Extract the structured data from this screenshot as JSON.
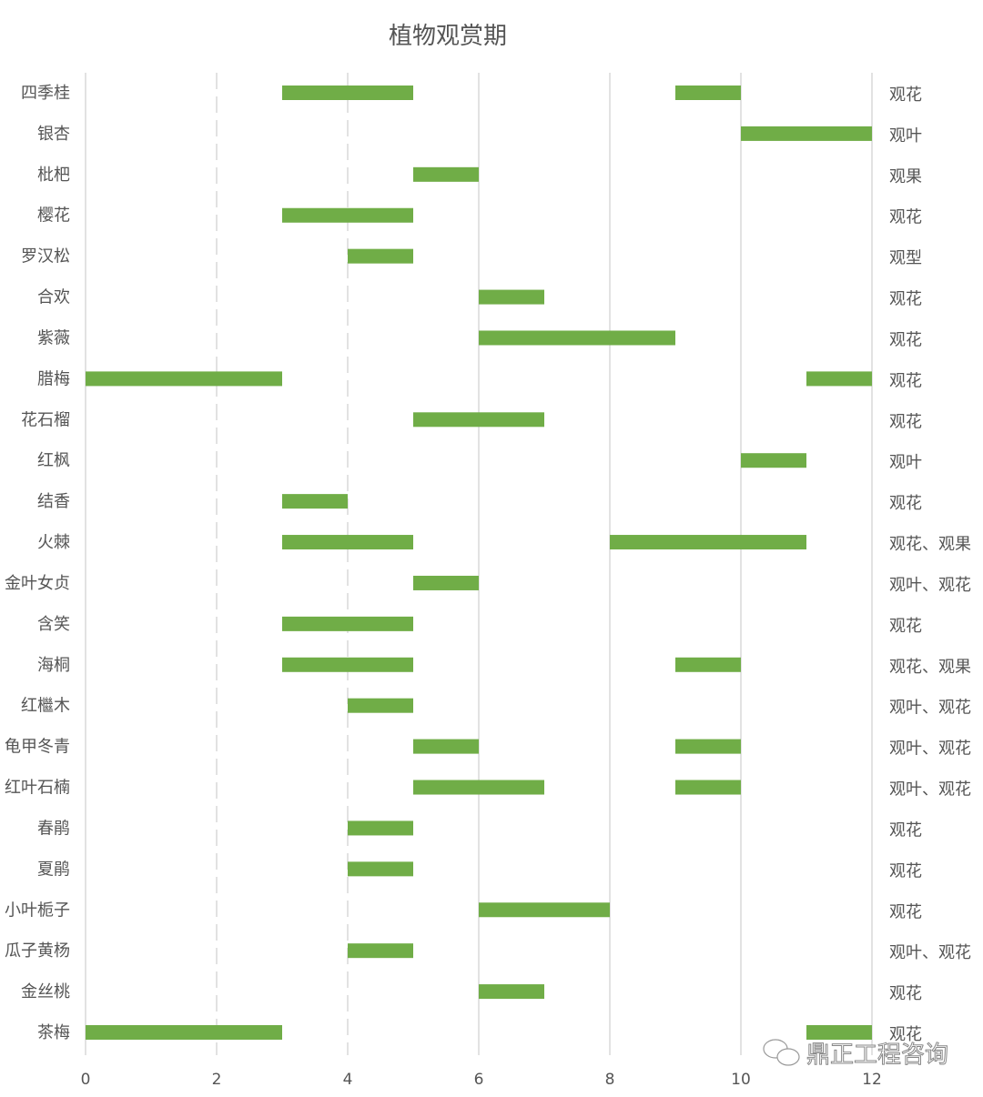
{
  "chart_data": {
    "type": "bar",
    "subtype": "floating-horizontal-bar",
    "title": "植物观赏期",
    "xlim": [
      0,
      12
    ],
    "xticks": [
      0,
      2,
      4,
      6,
      8,
      10,
      12
    ],
    "grid": true,
    "bar_color": "#70ad47",
    "categories": [
      "四季桂",
      "银杏",
      "枇杷",
      "樱花",
      "罗汉松",
      "合欢",
      "紫薇",
      "腊梅",
      "花石榴",
      "红枫",
      "结香",
      "火棘",
      "金叶女贞",
      "含笑",
      "海桐",
      "红檵木",
      "龟甲冬青",
      "红叶石楠",
      "春鹃",
      "夏鹃",
      "小叶栀子",
      "瓜子黄杨",
      "金丝桃",
      "茶梅"
    ],
    "ranges": [
      [
        [
          3,
          5
        ],
        [
          9,
          10
        ]
      ],
      [
        [
          10,
          12
        ]
      ],
      [
        [
          5,
          6
        ]
      ],
      [
        [
          3,
          5
        ]
      ],
      [
        [
          4,
          5
        ]
      ],
      [
        [
          6,
          7
        ]
      ],
      [
        [
          6,
          9
        ]
      ],
      [
        [
          0,
          3
        ],
        [
          11,
          12
        ]
      ],
      [
        [
          5,
          7
        ]
      ],
      [
        [
          10,
          11
        ]
      ],
      [
        [
          3,
          4
        ]
      ],
      [
        [
          3,
          5
        ],
        [
          8,
          11
        ]
      ],
      [
        [
          5,
          6
        ]
      ],
      [
        [
          3,
          5
        ]
      ],
      [
        [
          3,
          5
        ],
        [
          9,
          10
        ]
      ],
      [
        [
          4,
          5
        ]
      ],
      [
        [
          5,
          6
        ],
        [
          9,
          10
        ]
      ],
      [
        [
          5,
          7
        ],
        [
          9,
          10
        ]
      ],
      [
        [
          4,
          5
        ]
      ],
      [
        [
          4,
          5
        ]
      ],
      [
        [
          6,
          8
        ]
      ],
      [
        [
          4,
          5
        ]
      ],
      [
        [
          6,
          7
        ]
      ],
      [
        [
          0,
          3
        ],
        [
          11,
          12
        ]
      ]
    ],
    "right_labels": [
      "观花",
      "观叶",
      "观果",
      "观花",
      "观型",
      "观花",
      "观花",
      "观花",
      "观花",
      "观叶",
      "观花",
      "观花、观果",
      "观叶、观花",
      "观花",
      "观花、观果",
      "观叶、观花",
      "观叶、观花",
      "观叶、观花",
      "观花",
      "观花",
      "观花",
      "观叶、观花",
      "观花",
      "观花"
    ]
  },
  "watermark": {
    "text": "鼎正工程咨询",
    "icon": "wechat-icon"
  }
}
